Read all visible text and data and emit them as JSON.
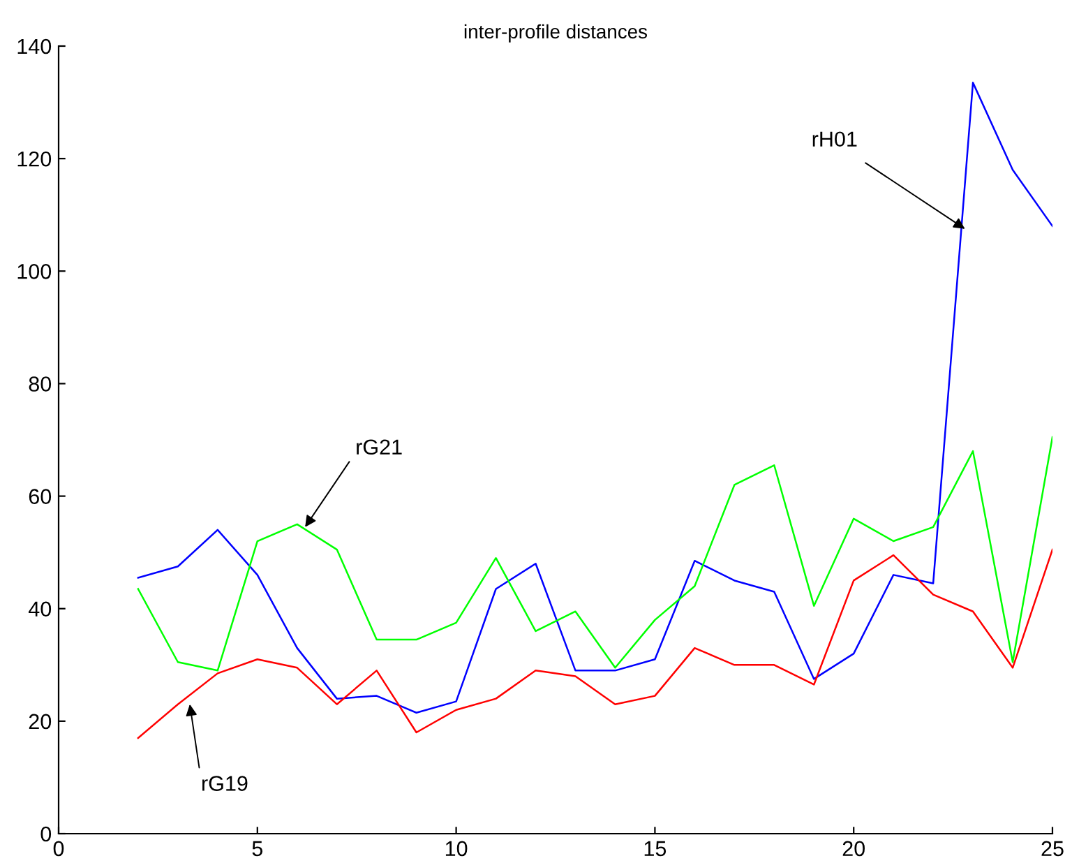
{
  "chart_data": {
    "type": "line",
    "title": "inter-profile distances",
    "x": [
      2,
      3,
      4,
      5,
      6,
      7,
      8,
      9,
      10,
      11,
      12,
      13,
      14,
      15,
      16,
      17,
      18,
      19,
      20,
      21,
      22,
      23,
      24,
      25
    ],
    "series": [
      {
        "color": "#0000ff",
        "values": [
          45.5,
          47.5,
          54,
          46,
          33,
          24,
          24.5,
          21.5,
          23.5,
          43.5,
          48,
          29,
          29,
          31,
          48.5,
          45,
          43,
          27.5,
          32,
          46,
          44.5,
          133.5,
          118,
          108
        ]
      },
      {
        "color": "#00ff00",
        "values": [
          43.5,
          30.5,
          29,
          52,
          55,
          50.5,
          34.5,
          34.5,
          37.5,
          49,
          36,
          39.5,
          29.5,
          38,
          44,
          62,
          65.5,
          40.5,
          56,
          52,
          54.5,
          68,
          30.5,
          70.5
        ]
      },
      {
        "color": "#ff0000",
        "values": [
          17,
          23,
          28.5,
          31,
          29.5,
          23,
          29,
          18,
          22,
          24,
          29,
          28,
          23,
          24.5,
          33,
          30,
          30,
          26.5,
          45,
          49.5,
          42.5,
          39.5,
          29.5,
          50.5
        ]
      }
    ],
    "annotations": [
      {
        "text": "rH01",
        "x": 22.8,
        "y": 107.5
      },
      {
        "text": "rG21",
        "x": 6.2,
        "y": 54.5
      },
      {
        "text": "rG19",
        "x": 3.3,
        "y": 23
      }
    ],
    "xlim": [
      0,
      25
    ],
    "xticks": [
      0,
      5,
      10,
      15,
      20,
      25
    ],
    "ylim": [
      0,
      140
    ],
    "yticks": [
      0,
      20,
      40,
      60,
      80,
      100,
      120,
      140
    ],
    "grid": false
  }
}
